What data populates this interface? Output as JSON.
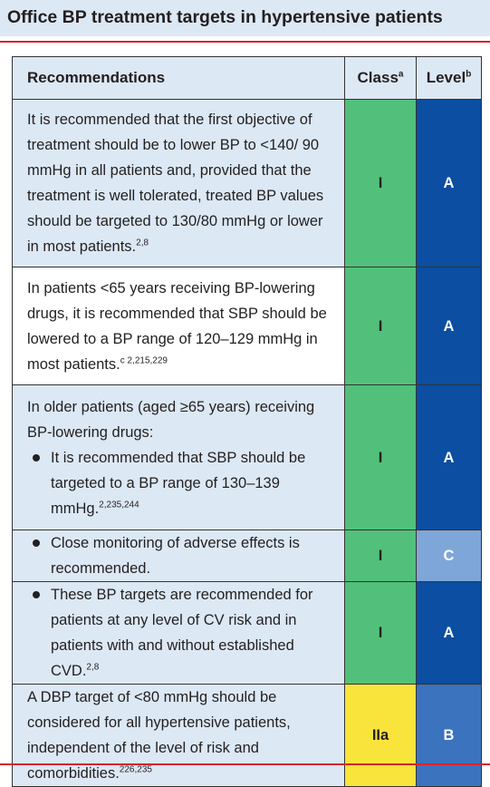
{
  "header": {
    "title": "Office BP treatment targets in hypertensive patients"
  },
  "table": {
    "columns": [
      {
        "text": "Recommendations"
      },
      {
        "text": "Class",
        "sup": "a"
      },
      {
        "text": "Level",
        "sup": "b"
      }
    ],
    "rows": [
      {
        "paragraphs": [
          {
            "text": "It is recommended that the first objective of treatment should be to lower BP to <140/ 90 mmHg in all patients and, provided that the treatment is well tolerated, treated BP values should be targeted to 130/80 mmHg or lower in most patients.",
            "sup": "2,8",
            "bullet": false
          }
        ],
        "class": "I",
        "level": "A",
        "class_color": "#52c07a",
        "level_color": "#0b4ea2",
        "shaded": true
      },
      {
        "paragraphs": [
          {
            "text": "In patients <65 years receiving BP-lowering drugs, it is recommended that SBP should be lowered to a BP range of 120–129 mmHg in most patients.",
            "sup": "c 2,215,229",
            "bullet": false
          }
        ],
        "class": "I",
        "level": "A",
        "class_color": "#52c07a",
        "level_color": "#0b4ea2",
        "shaded": false
      },
      {
        "paragraphs": [
          {
            "text": "In older patients (aged ≥65 years) receiving BP-lowering drugs:",
            "bullet": false
          },
          {
            "text": "It is recommended that SBP should be targeted to a BP range of 130–139 mmHg.",
            "sup": "2,235,244",
            "bullet": true
          }
        ],
        "class": "I",
        "level": "A",
        "class_color": "#52c07a",
        "level_color": "#0b4ea2",
        "shaded": true
      },
      {
        "paragraphs": [
          {
            "text": "Close monitoring of adverse effects is recommended.",
            "bullet": true
          }
        ],
        "class": "I",
        "level": "C",
        "class_color": "#52c07a",
        "level_color": "#7fa6d8",
        "shaded": true
      },
      {
        "paragraphs": [
          {
            "text": "These BP targets are recommended for patients at any level of CV risk and in patients with and without established CVD.",
            "sup": "2,8",
            "bullet": true
          }
        ],
        "class": "I",
        "level": "A",
        "class_color": "#52c07a",
        "level_color": "#0b4ea2",
        "shaded": true
      },
      {
        "paragraphs": [
          {
            "text": "A DBP target of <80 mmHg should be considered for all hypertensive patients, independent of the level of risk and comorbidities.",
            "sup": "226,235",
            "bullet": false
          }
        ],
        "class": "IIa",
        "level": "B",
        "class_color": "#f9e43c",
        "level_color": "#3b73bf",
        "shaded": true
      }
    ]
  }
}
